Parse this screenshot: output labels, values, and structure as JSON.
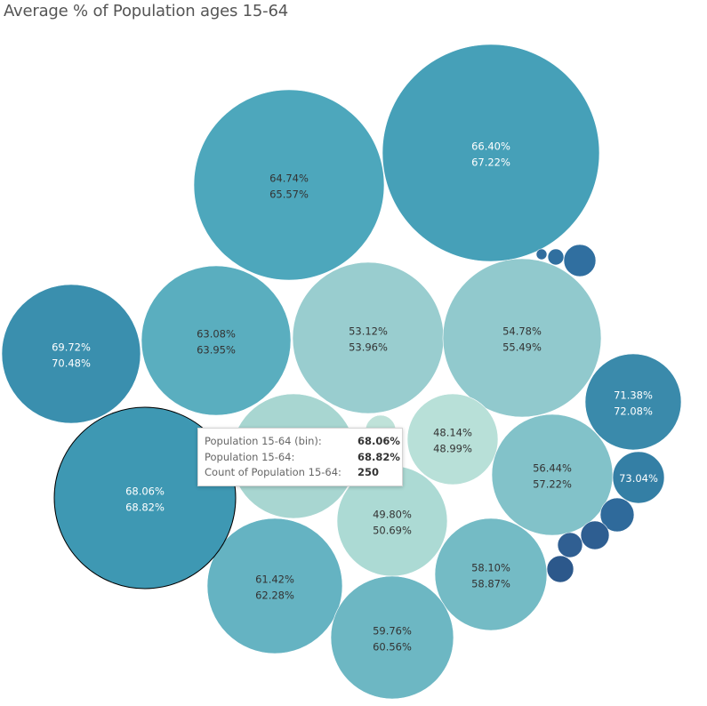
{
  "title": "Average % of Population ages 15-64",
  "chart_data": {
    "type": "bubble",
    "title": "Average % of Population ages 15-64",
    "value_suffix": "%",
    "bubbles": [
      {
        "bin": 66.4,
        "avg": 67.22,
        "shade": "#46a0b8",
        "labeled": true
      },
      {
        "bin": 64.74,
        "avg": 65.57,
        "shade": "#4da7bc",
        "labeled": true
      },
      {
        "bin": 63.08,
        "avg": 63.95,
        "shade": "#5aaebf",
        "labeled": true
      },
      {
        "bin": 53.12,
        "avg": 53.96,
        "shade": "#99cdcf",
        "labeled": true
      },
      {
        "bin": 54.78,
        "avg": 55.49,
        "shade": "#91c9cd",
        "labeled": true
      },
      {
        "bin": 69.72,
        "avg": 70.48,
        "shade": "#3a8fae",
        "labeled": true
      },
      {
        "bin": 71.38,
        "avg": 72.08,
        "shade": "#3a8aab",
        "labeled": true
      },
      {
        "bin": 48.14,
        "avg": 48.99,
        "shade": "#b8e0d8",
        "labeled": true
      },
      {
        "bin": 56.44,
        "avg": 57.22,
        "shade": "#82c2c9",
        "labeled": true
      },
      {
        "bin": 73.04,
        "avg": null,
        "shade": "#347fa5",
        "labeled": true
      },
      {
        "bin": 68.06,
        "avg": 68.82,
        "shade": "#3e98b3",
        "labeled": true,
        "selected": true
      },
      {
        "bin": 49.8,
        "avg": 50.69,
        "shade": "#acdad4",
        "labeled": true
      },
      {
        "bin": 58.1,
        "avg": 58.87,
        "shade": "#74bbc5",
        "labeled": true
      },
      {
        "bin": 61.42,
        "avg": 62.28,
        "shade": "#65b3c2",
        "labeled": true
      },
      {
        "bin": 59.76,
        "avg": 60.56,
        "shade": "#6db7c3",
        "labeled": true
      },
      {
        "shade": "#a8d6d1",
        "labeled": false
      },
      {
        "shade": "#bfe2d9",
        "labeled": false
      },
      {
        "shade": "#306fa0",
        "labeled": false
      },
      {
        "shade": "#306f9f",
        "labeled": false
      },
      {
        "shade": "#316d9e",
        "labeled": false
      },
      {
        "shade": "#2f6a9b",
        "labeled": false
      },
      {
        "shade": "#2e5e91",
        "labeled": false
      },
      {
        "shade": "#305f92",
        "labeled": false
      },
      {
        "shade": "#2c588b",
        "labeled": false
      }
    ]
  },
  "tooltip": {
    "rows": [
      {
        "label": "Population 15-64 (bin):",
        "value": "68.06%"
      },
      {
        "label": "Population 15-64:",
        "value": "68.82%"
      },
      {
        "label": "Count of Population 15-64:",
        "value": "250"
      }
    ]
  }
}
